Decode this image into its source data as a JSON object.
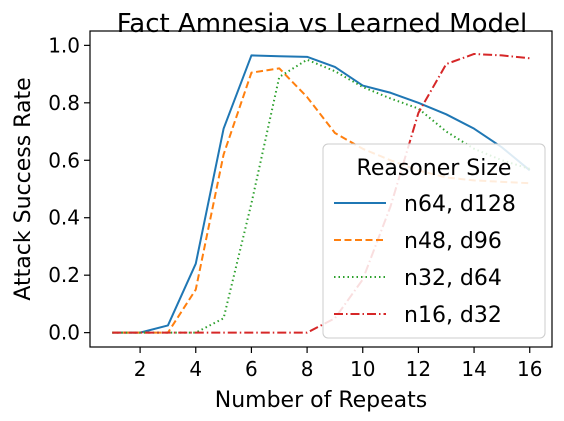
{
  "chart_data": {
    "type": "line",
    "title": "Fact Amnesia vs Learned Model",
    "xlabel": "Number of Repeats",
    "ylabel": "Attack Success Rate",
    "xlim": [
      0.2,
      16.8
    ],
    "ylim": [
      -0.05,
      1.05
    ],
    "xticks": [
      2,
      4,
      6,
      8,
      10,
      12,
      14,
      16
    ],
    "yticks": [
      0.0,
      0.2,
      0.4,
      0.6,
      0.8,
      1.0
    ],
    "ytick_labels": [
      "0.0",
      "0.2",
      "0.4",
      "0.6",
      "0.8",
      "1.0"
    ],
    "grid": false,
    "legend": {
      "title": "Reasoner Size",
      "placement": "lower-right"
    },
    "x": [
      1,
      2,
      3,
      4,
      5,
      6,
      7,
      8,
      9,
      10,
      11,
      12,
      13,
      14,
      15,
      16
    ],
    "series": [
      {
        "name": "n64, d128",
        "color": "#1f77b4",
        "dash": "solid",
        "values": [
          0.0,
          0.0,
          0.025,
          0.24,
          0.71,
          0.965,
          0.962,
          0.96,
          0.925,
          0.86,
          0.835,
          0.8,
          0.76,
          0.71,
          0.645,
          0.565
        ]
      },
      {
        "name": "n48, d96",
        "color": "#ff7f0e",
        "dash": "dashed",
        "values": [
          0.0,
          0.0,
          0.0,
          0.15,
          0.62,
          0.905,
          0.92,
          0.82,
          0.695,
          0.64,
          0.6,
          0.565,
          0.54,
          0.53,
          0.525,
          0.52
        ]
      },
      {
        "name": "n32, d64",
        "color": "#2ca02c",
        "dash": "dotted",
        "values": [
          0.0,
          0.0,
          0.0,
          0.0,
          0.05,
          0.45,
          0.89,
          0.95,
          0.91,
          0.855,
          0.815,
          0.78,
          0.7,
          0.64,
          0.6,
          0.57
        ]
      },
      {
        "name": "n16, d32",
        "color": "#d62728",
        "dash": "dashdot",
        "values": [
          0.0,
          0.0,
          0.0,
          0.0,
          0.0,
          0.0,
          0.0,
          0.0,
          0.05,
          0.185,
          0.44,
          0.765,
          0.935,
          0.97,
          0.965,
          0.955
        ]
      }
    ]
  }
}
